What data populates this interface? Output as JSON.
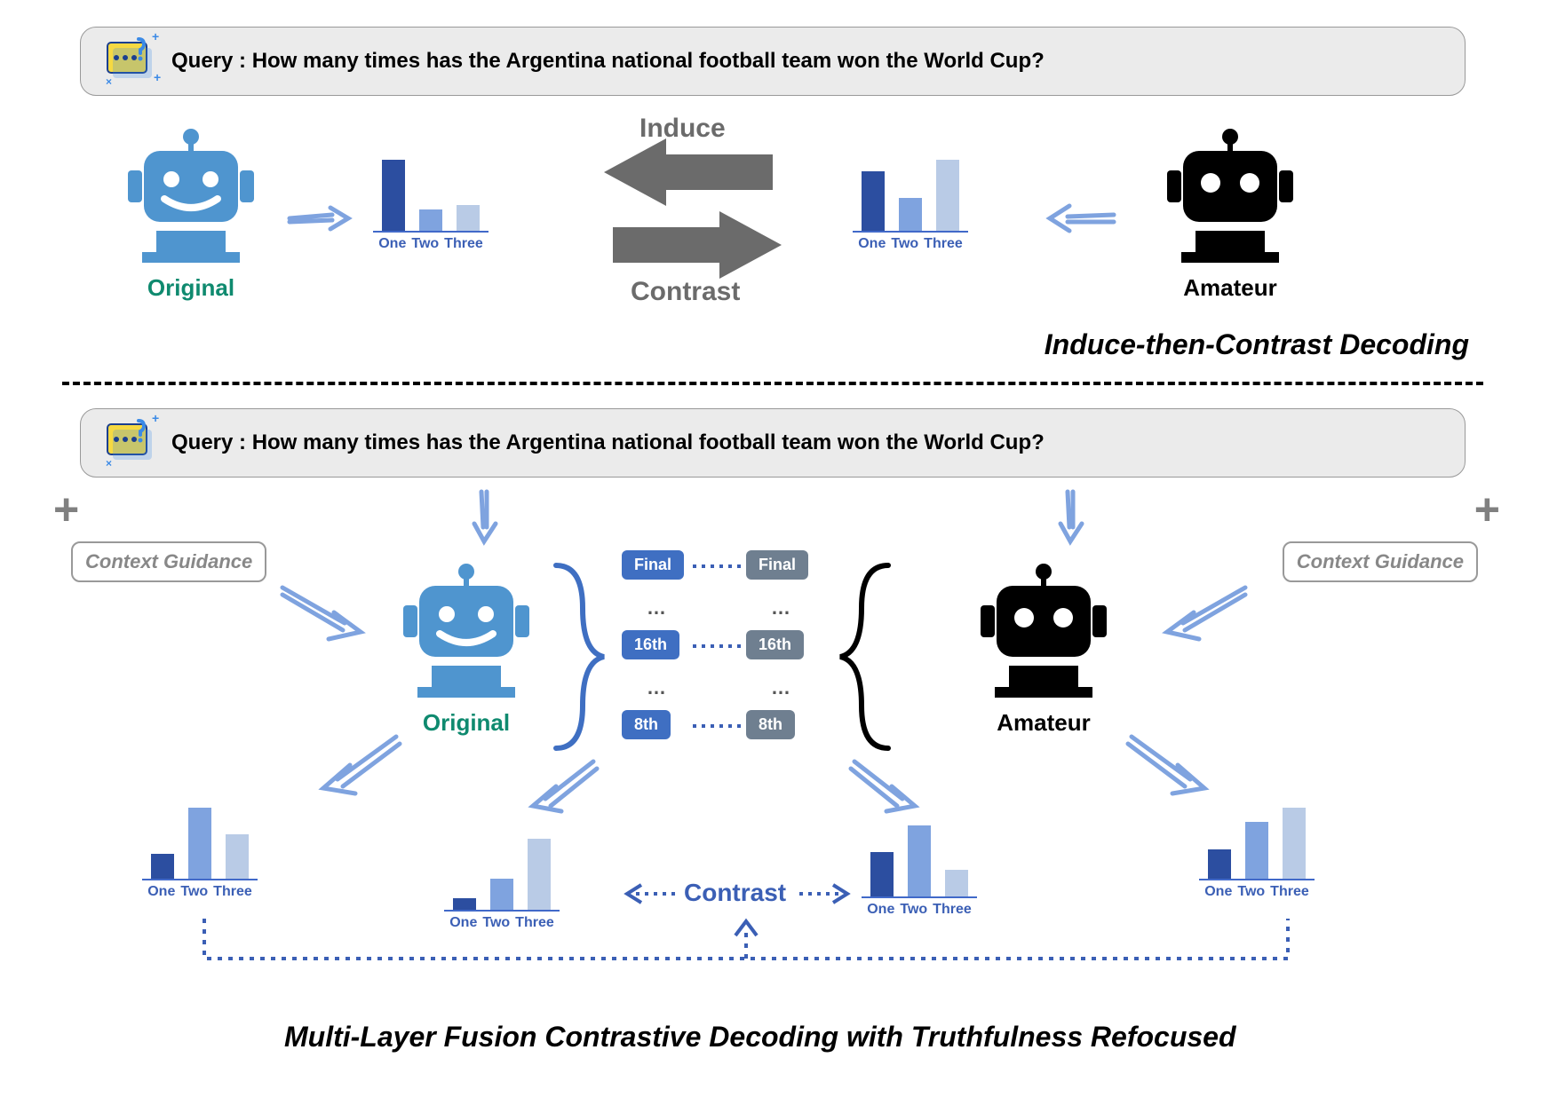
{
  "query_text": "Query : How many times has the Argentina national football team won the World Cup?",
  "robots": {
    "original": {
      "label": "Original",
      "label_color": "#0f8a6f"
    },
    "amateur": {
      "label": "Amateur",
      "label_color": "#000000"
    }
  },
  "colors": {
    "robot_blue": "#4f95cf",
    "robot_black": "#000000",
    "bar_dark": "#2c4ea0",
    "bar_mid": "#7fa3df",
    "bar_light": "#b9cbe6",
    "arrow_gray": "#6b6b6b",
    "layer_blue_bg": "#3f6fc2",
    "layer_gray_bg": "#6f7f90",
    "dotted_blue": "#3b5fb5",
    "query_icon_yellow": "#f6d942",
    "query_icon_blue": "#3b8ae6"
  },
  "top": {
    "induce_label": "Induce",
    "contrast_label": "Contrast",
    "title": "Induce-then-Contrast Decoding",
    "chart_left": {
      "categories": [
        "One",
        "Two",
        "Three"
      ],
      "values": [
        60,
        18,
        22
      ],
      "bar_colors": [
        "#2c4ea0",
        "#7fa3df",
        "#b9cbe6"
      ]
    },
    "chart_right": {
      "categories": [
        "One",
        "Two",
        "Three"
      ],
      "values": [
        40,
        22,
        48
      ],
      "bar_colors": [
        "#2c4ea0",
        "#7fa3df",
        "#b9cbe6"
      ]
    }
  },
  "bottom": {
    "title": "Multi-Layer Fusion Contrastive Decoding with Truthfulness Refocused",
    "context_guidance_label": "Context Guidance",
    "contrast_label": "Contrast",
    "layers_left": {
      "labels": [
        "Final",
        "16th",
        "8th"
      ],
      "bg": "#3f6fc2"
    },
    "layers_right": {
      "labels": [
        "Final",
        "16th",
        "8th"
      ],
      "bg": "#6f7f90"
    },
    "chart_far_left": {
      "categories": [
        "One",
        "Two",
        "Three"
      ],
      "values": [
        28,
        80,
        50
      ],
      "bar_colors": [
        "#2c4ea0",
        "#7fa3df",
        "#b9cbe6"
      ]
    },
    "chart_mid_left": {
      "categories": [
        "One",
        "Two",
        "Three"
      ],
      "values": [
        8,
        22,
        50
      ],
      "bar_colors": [
        "#2c4ea0",
        "#7fa3df",
        "#b9cbe6"
      ]
    },
    "chart_mid_right": {
      "categories": [
        "One",
        "Two",
        "Three"
      ],
      "values": [
        30,
        48,
        18
      ],
      "bar_colors": [
        "#2c4ea0",
        "#7fa3df",
        "#b9cbe6"
      ]
    },
    "chart_far_right": {
      "categories": [
        "One",
        "Two",
        "Three"
      ],
      "values": [
        30,
        58,
        72
      ],
      "bar_colors": [
        "#2c4ea0",
        "#7fa3df",
        "#b9cbe6"
      ]
    }
  }
}
